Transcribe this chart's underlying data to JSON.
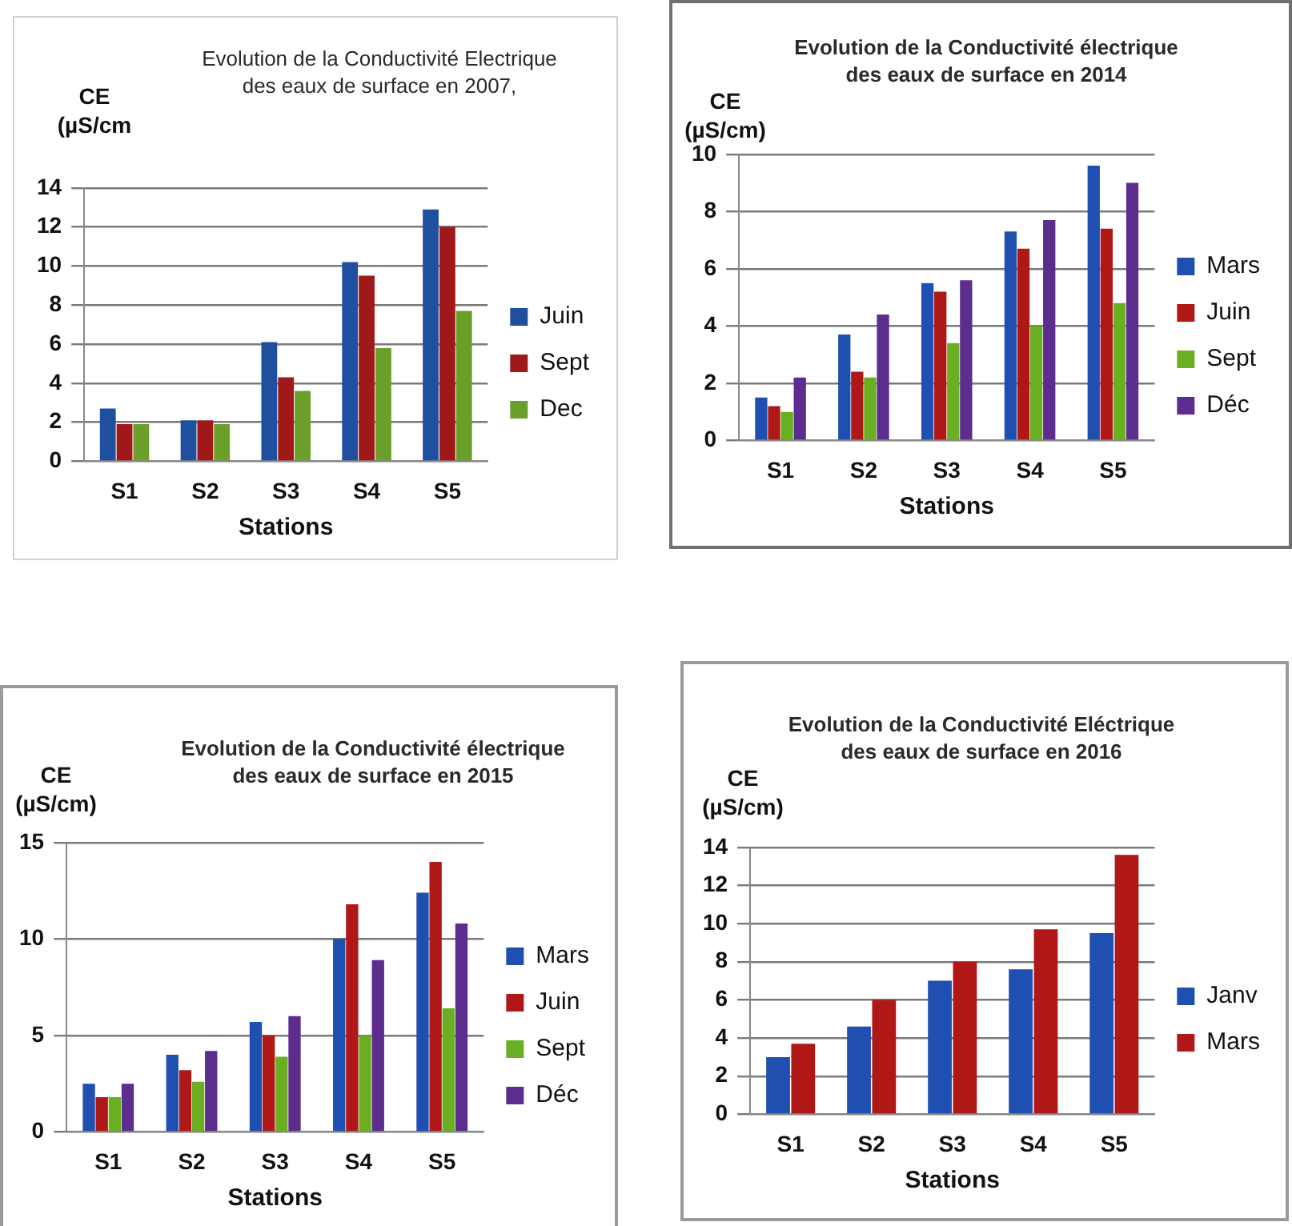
{
  "chart_data": [
    {
      "type": "bar",
      "title": "Evolution de la Conductivité Electrique des eaux de surface en 2007,",
      "ylabel": "CE (µS/cm",
      "xlabel": "Stations",
      "categories": [
        "S1",
        "S2",
        "S3",
        "S4",
        "S5"
      ],
      "series": [
        {
          "name": "Juin",
          "color": "#1f4f9f",
          "values": [
            2.7,
            2.1,
            6.1,
            10.2,
            12.9
          ]
        },
        {
          "name": "Sept",
          "color": "#a01818",
          "values": [
            1.9,
            2.1,
            4.3,
            9.5,
            12.0
          ]
        },
        {
          "name": "Dec",
          "color": "#6a9f2a",
          "values": [
            1.9,
            1.9,
            3.6,
            5.8,
            7.7
          ]
        }
      ],
      "ylim": [
        0,
        14
      ],
      "yticks": [
        0,
        2,
        4,
        6,
        8,
        10,
        12,
        14
      ],
      "grid": "y",
      "legend": "right"
    },
    {
      "type": "bar",
      "title": "Evolution de la Conductivité électrique des eaux de surface en 2014",
      "ylabel": "CE (µS/cm)",
      "xlabel": "Stations",
      "categories": [
        "S1",
        "S2",
        "S3",
        "S4",
        "S5"
      ],
      "series": [
        {
          "name": "Mars",
          "color": "#1f4fb0",
          "values": [
            1.5,
            3.7,
            5.5,
            7.3,
            9.6
          ]
        },
        {
          "name": "Juin",
          "color": "#b01818",
          "values": [
            1.2,
            2.4,
            5.2,
            6.7,
            7.4
          ]
        },
        {
          "name": "Sept",
          "color": "#6aae22",
          "values": [
            1.0,
            2.2,
            3.4,
            4.0,
            4.8
          ]
        },
        {
          "name": "Déc",
          "color": "#5c2d8c",
          "values": [
            2.2,
            4.4,
            5.6,
            7.7,
            9.0
          ]
        }
      ],
      "ylim": [
        0,
        10
      ],
      "yticks": [
        0,
        2,
        4,
        6,
        8,
        10
      ],
      "grid": "y",
      "legend": "right"
    },
    {
      "type": "bar",
      "title": "Evolution de la Conductivité électrique des eaux de surface en 2015",
      "ylabel": "CE (µS/cm)",
      "xlabel": "Stations",
      "categories": [
        "S1",
        "S2",
        "S3",
        "S4",
        "S5"
      ],
      "series": [
        {
          "name": "Mars",
          "color": "#1f4fb0",
          "values": [
            2.5,
            4.0,
            5.7,
            10.0,
            12.4
          ]
        },
        {
          "name": "Juin",
          "color": "#b01818",
          "values": [
            1.8,
            3.2,
            5.0,
            11.8,
            14.0
          ]
        },
        {
          "name": "Sept",
          "color": "#6aae22",
          "values": [
            1.8,
            2.6,
            3.9,
            5.0,
            6.4
          ]
        },
        {
          "name": "Déc",
          "color": "#5c2d8c",
          "values": [
            2.5,
            4.2,
            6.0,
            8.9,
            10.8
          ]
        }
      ],
      "ylim": [
        0,
        15
      ],
      "yticks": [
        0,
        5,
        10,
        15
      ],
      "grid": "y",
      "legend": "right"
    },
    {
      "type": "bar",
      "title": "Evolution de la Conductivité Eléctrique des eaux de surface en 2016",
      "ylabel": "CE (µS/cm)",
      "xlabel": "Stations",
      "categories": [
        "S1",
        "S2",
        "S3",
        "S4",
        "S5"
      ],
      "series": [
        {
          "name": "Janv",
          "color": "#1f4fb0",
          "values": [
            3.0,
            4.6,
            7.0,
            7.6,
            9.5
          ]
        },
        {
          "name": "Mars",
          "color": "#b01818",
          "values": [
            3.7,
            6.0,
            8.0,
            9.7,
            13.6
          ]
        }
      ],
      "ylim": [
        0,
        14
      ],
      "yticks": [
        0,
        2,
        4,
        6,
        8,
        10,
        12,
        14
      ],
      "grid": "y",
      "legend": "right"
    }
  ]
}
